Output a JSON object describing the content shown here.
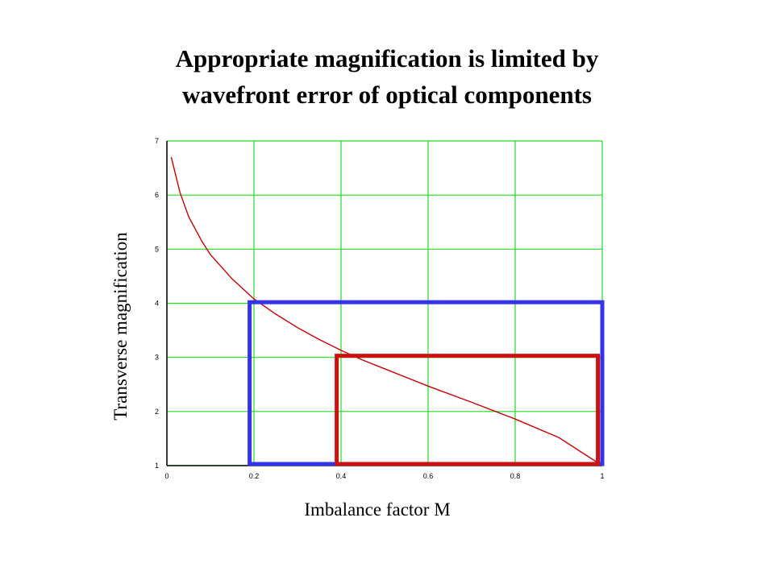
{
  "title_lines": [
    "Appropriate magnification is limited by",
    "wavefront error of optical components"
  ],
  "chart_data": {
    "type": "line",
    "xlabel": "Imbalance factor M",
    "ylabel": "Transverse magnification",
    "xlim": [
      0,
      1
    ],
    "ylim": [
      1,
      7
    ],
    "x_ticks": [
      "0",
      "0.2",
      "0.4",
      "0.6",
      "0.8",
      "1"
    ],
    "y_ticks": [
      "1",
      "2",
      "3",
      "4",
      "5",
      "6",
      "7"
    ],
    "grid": true,
    "series": [
      {
        "color": "#cc0000",
        "x": [
          0.01,
          0.03,
          0.05,
          0.08,
          0.1,
          0.15,
          0.2,
          0.25,
          0.3,
          0.35,
          0.4,
          0.45,
          0.5,
          0.6,
          0.7,
          0.8,
          0.9,
          1.0
        ],
        "y": [
          6.7,
          6.05,
          5.6,
          5.15,
          4.9,
          4.45,
          4.08,
          3.8,
          3.55,
          3.33,
          3.13,
          2.95,
          2.79,
          2.47,
          2.17,
          1.86,
          1.52,
          1.0
        ]
      }
    ],
    "rectangles": [
      {
        "color": "#3333ee",
        "x": [
          0.19,
          1.0
        ],
        "y": [
          1.03,
          4.02
        ]
      },
      {
        "color": "#cc1111",
        "x": [
          0.39,
          0.99
        ],
        "y": [
          1.03,
          3.03
        ]
      }
    ],
    "grid_color": "#22dd22"
  }
}
